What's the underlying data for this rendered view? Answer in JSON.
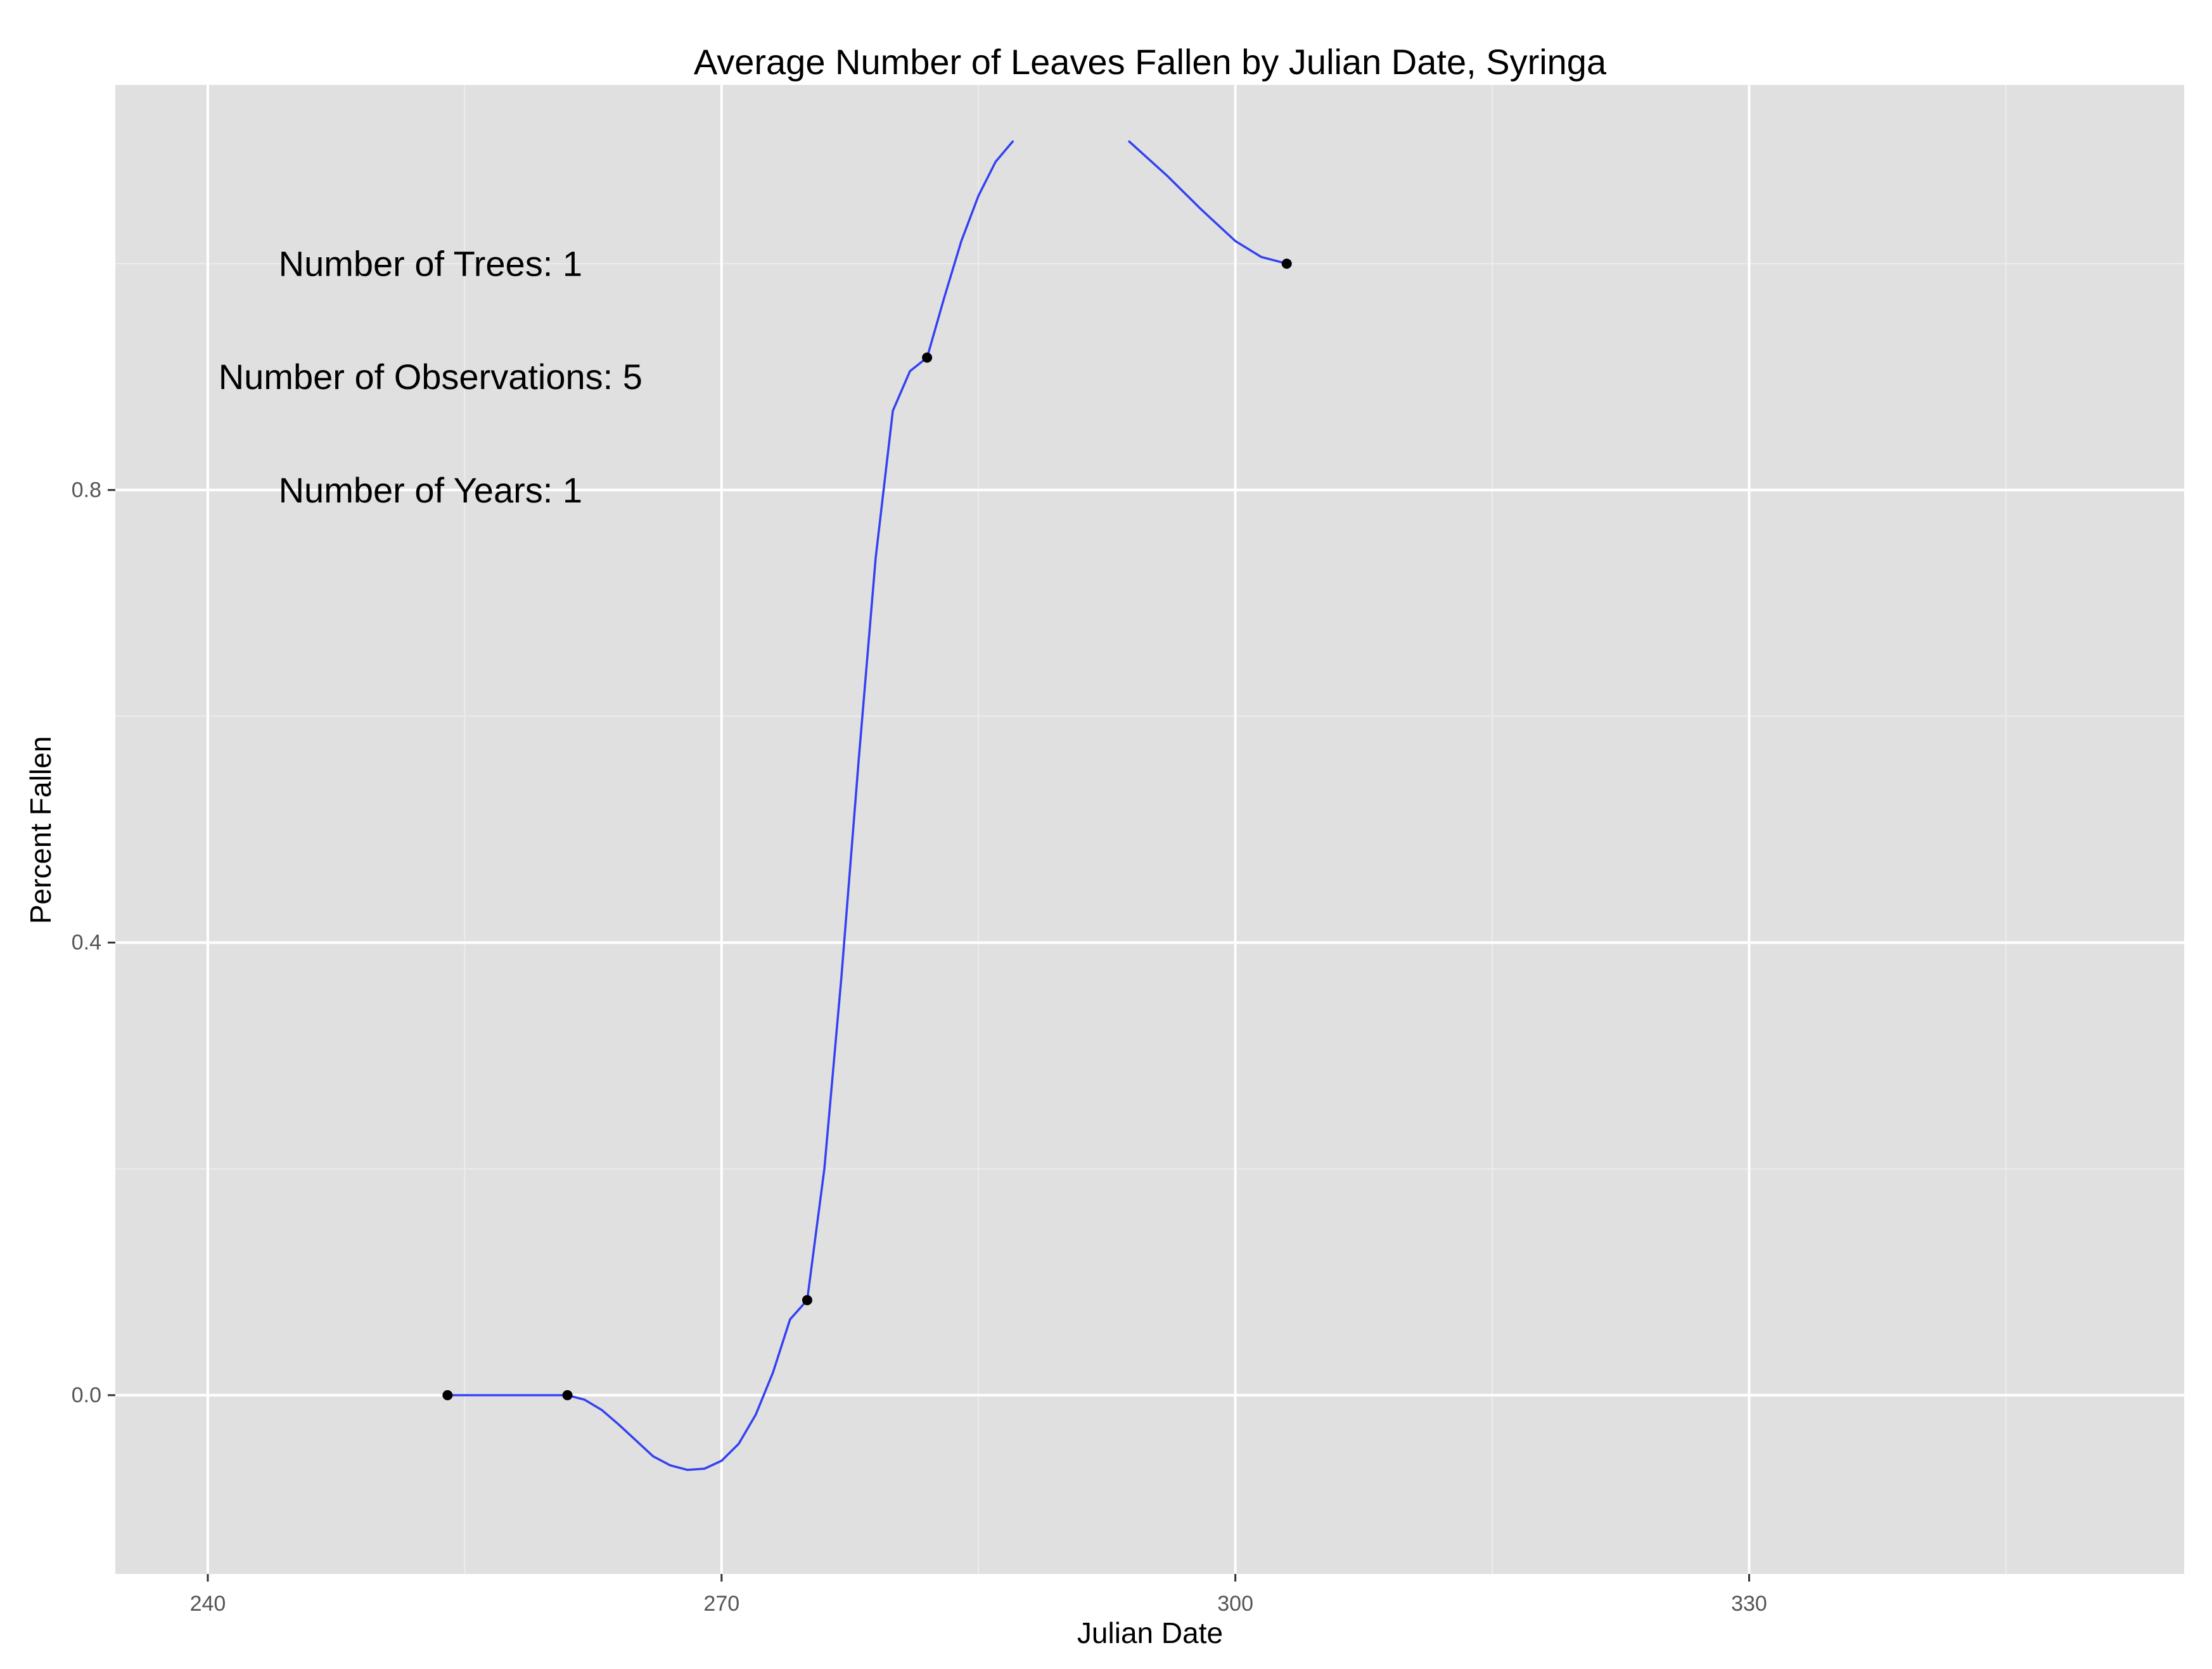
{
  "chart_data": {
    "type": "scatter",
    "title": "Average Number of Leaves Fallen by Julian Date, Syringa",
    "xlabel": "Julian Date",
    "ylabel": "Percent Fallen",
    "xlim": [
      234.6,
      355.4
    ],
    "ylim": [
      -0.158,
      1.158
    ],
    "x_ticks": [
      240,
      270,
      300,
      330
    ],
    "x_tick_labels": [
      "240",
      "270",
      "300",
      "330"
    ],
    "x_minor_ticks": [
      255,
      285,
      315,
      345
    ],
    "y_ticks": [
      0.0,
      0.4,
      0.8
    ],
    "y_tick_labels": [
      "0.0",
      "0.4",
      "0.8"
    ],
    "y_minor_ticks": [
      0.2,
      0.6,
      1.0
    ],
    "grid": true,
    "points": {
      "x": [
        254,
        261,
        275,
        282,
        303
      ],
      "y": [
        0.0,
        0.0,
        0.084,
        0.917,
        1.0
      ]
    },
    "smooth_line": {
      "segments": [
        {
          "x": [
            254,
            258,
            261,
            262,
            263,
            264,
            265,
            266,
            267,
            268,
            269,
            270,
            271,
            272,
            273,
            274,
            275,
            276,
            277,
            278,
            279,
            280,
            281,
            282,
            283,
            284,
            285,
            286,
            287
          ],
          "y": [
            0.0,
            0.0,
            0.0,
            -0.004,
            -0.013,
            -0.026,
            -0.04,
            -0.054,
            -0.062,
            -0.066,
            -0.065,
            -0.058,
            -0.043,
            -0.017,
            0.02,
            0.067,
            0.084,
            0.2,
            0.37,
            0.56,
            0.74,
            0.87,
            0.905,
            0.917,
            0.97,
            1.02,
            1.06,
            1.09,
            1.108
          ]
        },
        {
          "x": [
            293.8,
            296,
            298,
            300,
            301.5,
            303
          ],
          "y": [
            1.108,
            1.078,
            1.048,
            1.02,
            1.006,
            1.0
          ]
        }
      ],
      "color": "#3341f2"
    },
    "annotations": [
      {
        "text": "Number of Trees: 1",
        "x": 253.0,
        "y": 1.0
      },
      {
        "text": "Number of Observations: 5",
        "x": 253.0,
        "y": 0.9
      },
      {
        "text": "Number of Years: 1",
        "x": 253.0,
        "y": 0.8
      }
    ],
    "colors": {
      "panel_background": "#e0e0e0",
      "grid_major": "#ffffff",
      "grid_minor": "#ececec",
      "point": "#000000",
      "line": "#3341f2",
      "tick_label": "#555555",
      "text": "#000000"
    }
  }
}
